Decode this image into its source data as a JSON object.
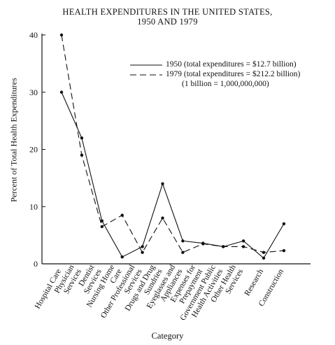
{
  "chart_data": {
    "type": "line",
    "title": "HEALTH EXPENDITURES IN THE UNITED STATES,",
    "subtitle": "1950 AND 1979",
    "xlabel": "Category",
    "ylabel": "Percent of Total Health Expenditures",
    "ylim": [
      0,
      40
    ],
    "yticks": [
      "0",
      "10",
      "20",
      "30",
      "40"
    ],
    "categories": [
      [
        "Hospital Care"
      ],
      [
        "Physician",
        "Services"
      ],
      [
        "Dentist",
        "Services"
      ],
      [
        "Nursing Home",
        "Care"
      ],
      [
        "Other Professional",
        "Services"
      ],
      [
        "Drugs and Drug",
        "Sundries"
      ],
      [
        "Eyeglasses and",
        "Appliances"
      ],
      [
        "Expenses for",
        "Prepayment"
      ],
      [
        "Government Public",
        "Health Activities"
      ],
      [
        "Other Health",
        "Services"
      ],
      [
        "Research"
      ],
      [
        "Construction"
      ]
    ],
    "series": [
      {
        "name": "1950 (total expenditures =  $12.7 billion)",
        "style": "solid",
        "values": [
          30,
          22,
          7.5,
          1.2,
          3,
          14,
          4,
          3.6,
          3,
          4,
          1,
          7
        ]
      },
      {
        "name": "1979 (total expenditures = $212.2 billion)",
        "style": "dashed",
        "values": [
          40,
          19,
          6.5,
          8.5,
          2,
          8,
          2,
          3.5,
          3,
          3,
          2,
          2.3
        ]
      }
    ],
    "legend_note": "(1 billion = 1,000,000,000)",
    "legend_position": "top-right",
    "grid": false
  }
}
